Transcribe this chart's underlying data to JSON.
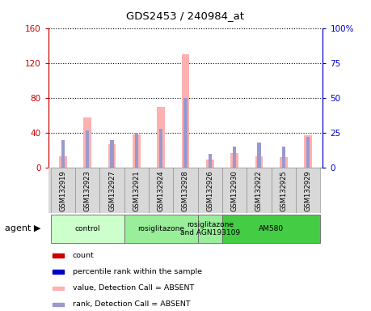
{
  "title": "GDS2453 / 240984_at",
  "samples": [
    "GSM132919",
    "GSM132923",
    "GSM132927",
    "GSM132921",
    "GSM132924",
    "GSM132928",
    "GSM132926",
    "GSM132930",
    "GSM132922",
    "GSM132925",
    "GSM132929"
  ],
  "pink_values": [
    13,
    58,
    27,
    38,
    70,
    130,
    10,
    17,
    13,
    12,
    37
  ],
  "blue_ranks": [
    20,
    27,
    20,
    25,
    28,
    50,
    10,
    15,
    18,
    15,
    22
  ],
  "ylim_left": [
    0,
    160
  ],
  "ylim_right": [
    0,
    100
  ],
  "yticks_left": [
    0,
    40,
    80,
    120,
    160
  ],
  "yticks_right": [
    0,
    25,
    50,
    75,
    100
  ],
  "yticklabels_right": [
    "0",
    "25",
    "50",
    "75",
    "100%"
  ],
  "bar_color_pink": "#FFB0B0",
  "bar_color_blue": "#9999CC",
  "color_left_axis": "#CC0000",
  "color_right_axis": "#0000CC",
  "groups": [
    {
      "label": "control",
      "start": 0,
      "end": 3,
      "color": "#CCFFCC"
    },
    {
      "label": "rosiglitazone",
      "start": 3,
      "end": 6,
      "color": "#99EE99"
    },
    {
      "label": "rosiglitazone\nand AGN193109",
      "start": 6,
      "end": 7,
      "color": "#99EE99"
    },
    {
      "label": "AM580",
      "start": 7,
      "end": 11,
      "color": "#44CC44"
    }
  ],
  "legend_items": [
    {
      "color": "#CC0000",
      "label": "count"
    },
    {
      "color": "#0000CC",
      "label": "percentile rank within the sample"
    },
    {
      "color": "#FFB0B0",
      "label": "value, Detection Call = ABSENT"
    },
    {
      "color": "#9999CC",
      "label": "rank, Detection Call = ABSENT"
    }
  ],
  "bg_color": "#D8D8D8",
  "plot_bg": "#FFFFFF"
}
